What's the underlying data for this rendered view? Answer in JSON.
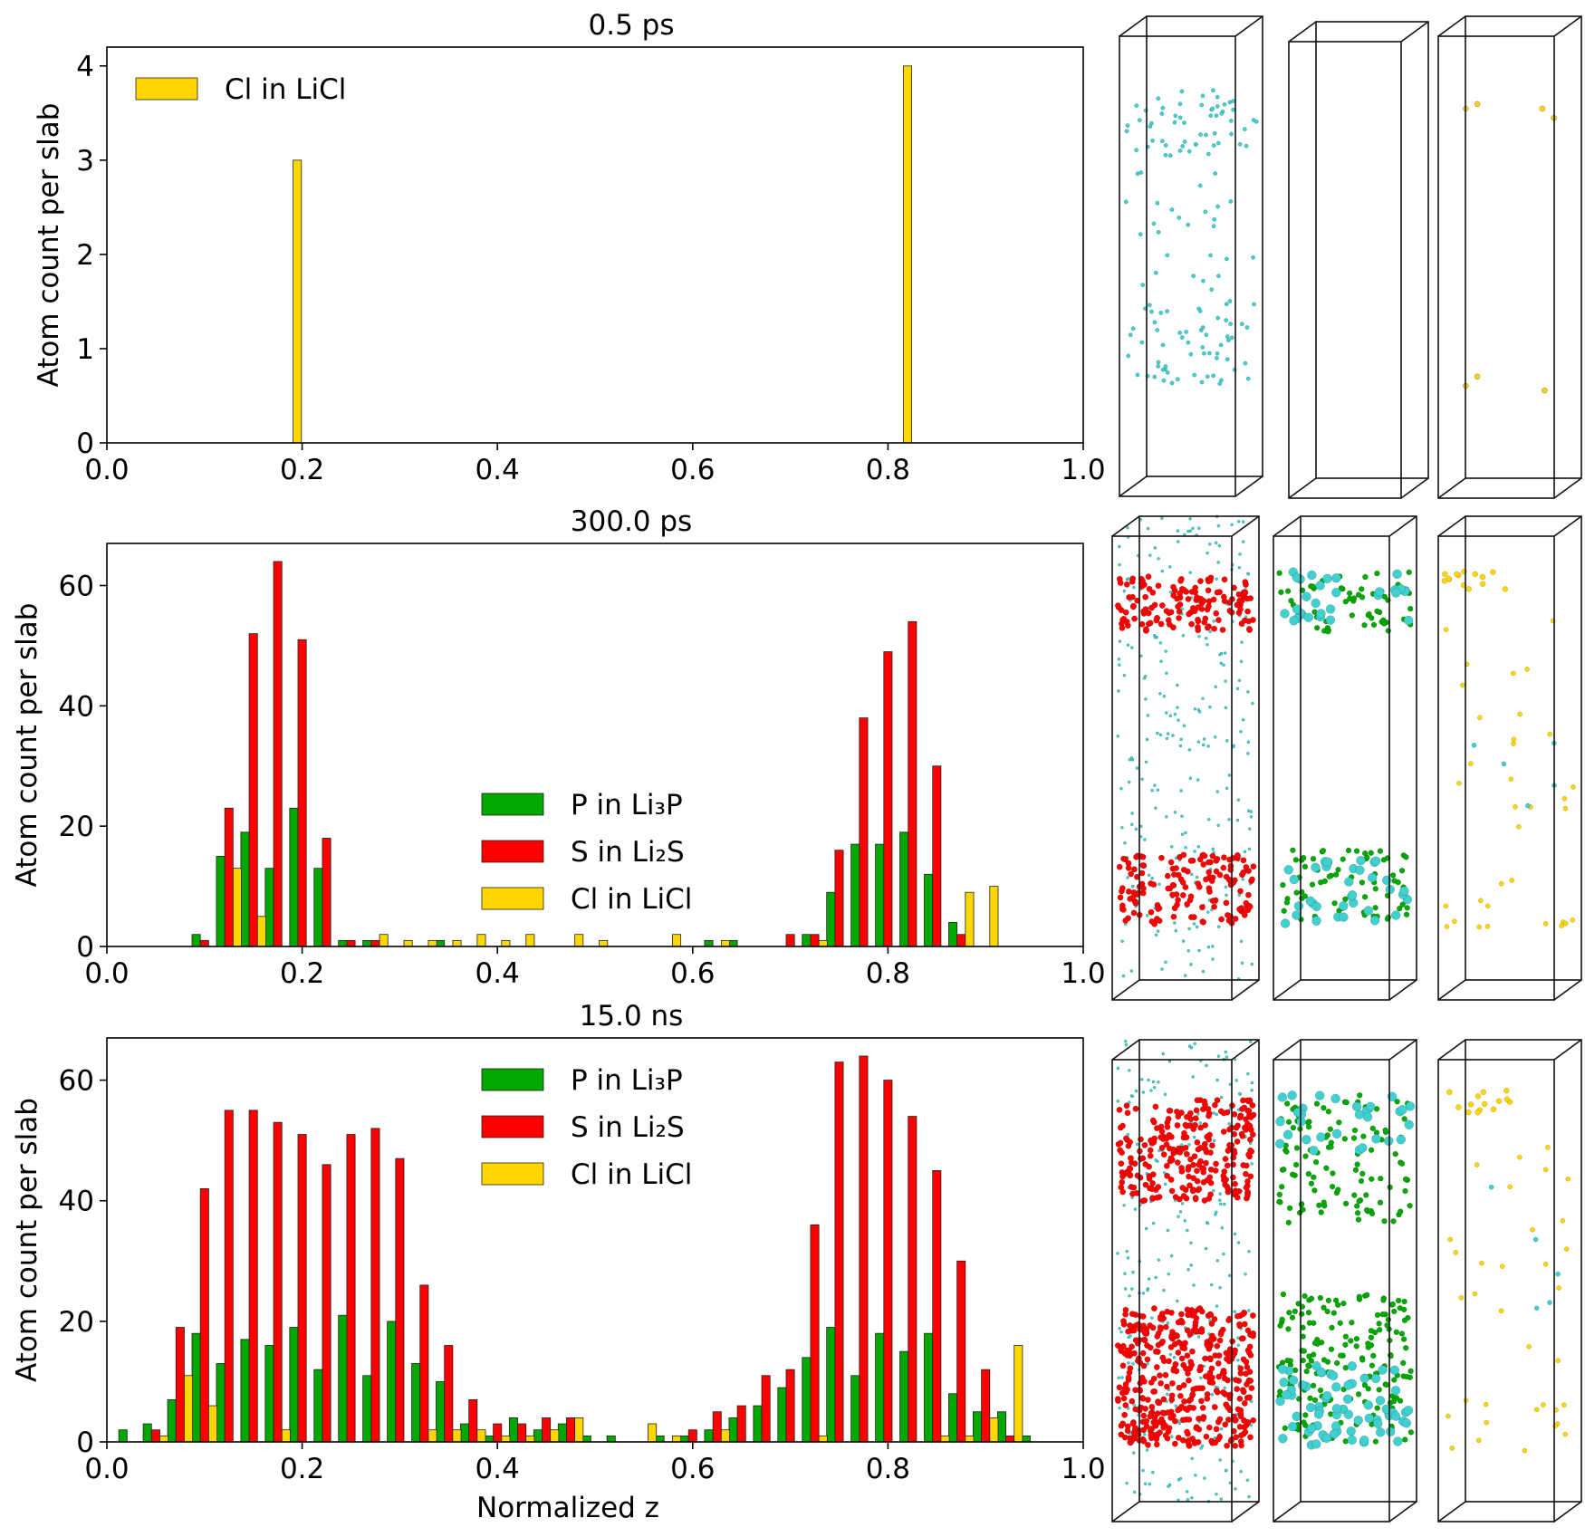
{
  "figure": {
    "xlabel": "Normalized z",
    "ylabel": "Atom count per slab"
  },
  "colors": {
    "P": "#00a800",
    "S": "#ff0000",
    "Cl": "#ffd700",
    "Li": "#40d0d0"
  },
  "chart_data": [
    {
      "type": "bar",
      "title": "0.5 ps",
      "xlabel": "",
      "ylabel": "Atom count per slab",
      "xlim": [
        0.0,
        1.0
      ],
      "ylim": [
        0,
        4.2
      ],
      "xticks": [
        "0.0",
        "0.2",
        "0.4",
        "0.6",
        "0.8",
        "1.0"
      ],
      "yticks": [
        "0",
        "1",
        "2",
        "3",
        "4"
      ],
      "legend_position": "upper-left",
      "series": [
        {
          "name": "Cl in LiCl",
          "color": "#ffd700",
          "x": [
            0.195,
            0.82
          ],
          "values": [
            3,
            4
          ]
        }
      ]
    },
    {
      "type": "bar",
      "title": "300.0 ps",
      "xlabel": "",
      "ylabel": "Atom count per slab",
      "xlim": [
        0.0,
        1.0
      ],
      "ylim": [
        0,
        67
      ],
      "xticks": [
        "0.0",
        "0.2",
        "0.4",
        "0.6",
        "0.8",
        "1.0"
      ],
      "yticks": [
        "0",
        "20",
        "40",
        "60"
      ],
      "legend_position": "center",
      "series": [
        {
          "name": "P in Li₃P",
          "color": "#00a800",
          "x": [
            0.1,
            0.125,
            0.15,
            0.175,
            0.2,
            0.225,
            0.25,
            0.275,
            0.35,
            0.625,
            0.65,
            0.725,
            0.75,
            0.775,
            0.8,
            0.825,
            0.85,
            0.875
          ],
          "values": [
            2,
            15,
            19,
            13,
            23,
            13,
            1,
            1,
            1,
            1,
            1,
            2,
            9,
            17,
            17,
            19,
            12,
            4
          ]
        },
        {
          "name": "S in Li₂S",
          "color": "#ff0000",
          "x": [
            0.1,
            0.125,
            0.15,
            0.175,
            0.2,
            0.225,
            0.25,
            0.275,
            0.7,
            0.725,
            0.75,
            0.775,
            0.8,
            0.825,
            0.85,
            0.875
          ],
          "values": [
            1,
            23,
            52,
            64,
            51,
            18,
            1,
            1,
            2,
            2,
            16,
            38,
            49,
            54,
            30,
            2
          ]
        },
        {
          "name": "Cl in LiCl",
          "color": "#ffd700",
          "x": [
            0.125,
            0.15,
            0.275,
            0.3,
            0.325,
            0.35,
            0.375,
            0.4,
            0.425,
            0.475,
            0.5,
            0.575,
            0.625,
            0.725,
            0.875,
            0.9
          ],
          "values": [
            13,
            5,
            2,
            1,
            1,
            1,
            2,
            1,
            2,
            2,
            1,
            2,
            1,
            1,
            9,
            10
          ]
        }
      ]
    },
    {
      "type": "bar",
      "title": "15.0 ns",
      "xlabel": "Normalized z",
      "ylabel": "Atom count per slab",
      "xlim": [
        0.0,
        1.0
      ],
      "ylim": [
        0,
        67
      ],
      "xticks": [
        "0.0",
        "0.2",
        "0.4",
        "0.6",
        "0.8",
        "1.0"
      ],
      "yticks": [
        "0",
        "20",
        "40",
        "60"
      ],
      "legend_position": "upper-center",
      "series": [
        {
          "name": "P in Li₃P",
          "color": "#00a800",
          "x": [
            0.025,
            0.05,
            0.075,
            0.1,
            0.125,
            0.15,
            0.175,
            0.2,
            0.225,
            0.25,
            0.275,
            0.3,
            0.325,
            0.35,
            0.375,
            0.4,
            0.425,
            0.45,
            0.475,
            0.5,
            0.525,
            0.575,
            0.6,
            0.625,
            0.65,
            0.675,
            0.7,
            0.725,
            0.75,
            0.775,
            0.8,
            0.825,
            0.85,
            0.875,
            0.9,
            0.925,
            0.95
          ],
          "values": [
            2,
            3,
            7,
            18,
            13,
            17,
            16,
            19,
            12,
            21,
            11,
            20,
            13,
            10,
            3,
            1,
            4,
            2,
            3,
            1,
            1,
            1,
            1,
            2,
            4,
            6,
            9,
            14,
            19,
            11,
            18,
            15,
            18,
            8,
            5,
            5,
            1
          ]
        },
        {
          "name": "S in Li₂S",
          "color": "#ff0000",
          "x": [
            0.05,
            0.075,
            0.1,
            0.125,
            0.15,
            0.175,
            0.2,
            0.225,
            0.25,
            0.275,
            0.3,
            0.325,
            0.35,
            0.375,
            0.4,
            0.425,
            0.45,
            0.475,
            0.6,
            0.625,
            0.65,
            0.675,
            0.7,
            0.725,
            0.75,
            0.775,
            0.8,
            0.825,
            0.85,
            0.875,
            0.9,
            0.925
          ],
          "values": [
            2,
            19,
            42,
            55,
            55,
            53,
            51,
            46,
            51,
            52,
            47,
            26,
            16,
            7,
            3,
            3,
            4,
            4,
            2,
            5,
            6,
            11,
            12,
            36,
            63,
            64,
            60,
            54,
            45,
            30,
            12,
            1
          ]
        },
        {
          "name": "Cl in LiCl",
          "color": "#ffd700",
          "x": [
            0.05,
            0.075,
            0.1,
            0.175,
            0.325,
            0.35,
            0.375,
            0.4,
            0.425,
            0.45,
            0.475,
            0.55,
            0.575,
            0.625,
            0.725,
            0.85,
            0.875,
            0.9,
            0.925
          ],
          "values": [
            1,
            11,
            6,
            2,
            2,
            2,
            2,
            1,
            1,
            2,
            4,
            3,
            1,
            2,
            1,
            1,
            1,
            4,
            16
          ]
        }
      ]
    }
  ],
  "snapshots": [
    {
      "time": "0.5 ps",
      "panels": [
        {
          "species": "Li",
          "li_density": 1.0
        },
        {
          "species": "none",
          "li_density": 0
        },
        {
          "species": "Cl",
          "li_density": 0
        }
      ]
    },
    {
      "time": "300.0 ps",
      "panels": [
        {
          "species": "S+Li",
          "li_density": 3.0
        },
        {
          "species": "P+Li",
          "li_density": 1.0
        },
        {
          "species": "Cl",
          "li_density": 0.1
        }
      ]
    },
    {
      "time": "15.0 ns",
      "panels": [
        {
          "species": "S+Li",
          "li_density": 3.0
        },
        {
          "species": "P+Li",
          "li_density": 1.0
        },
        {
          "species": "Cl",
          "li_density": 0.1
        }
      ]
    }
  ]
}
